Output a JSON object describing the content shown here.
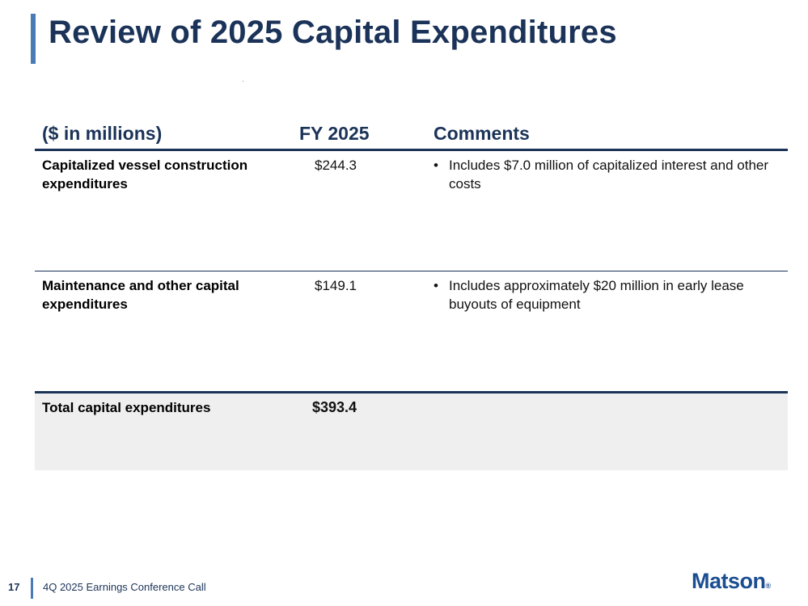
{
  "slide": {
    "title": "Review of 2025 Capital Expenditures"
  },
  "table": {
    "headers": {
      "label": "($ in millions)",
      "fy": "FY 2025",
      "comments": "Comments"
    },
    "rows": [
      {
        "label": "Capitalized vessel construction expenditures",
        "value": "$244.3",
        "comment": "Includes $7.0 million of capitalized interest and other costs"
      },
      {
        "label": "Maintenance and other capital expenditures",
        "value": "$149.1",
        "comment": "Includes approximately $20 million in early lease buyouts of equipment"
      }
    ],
    "total": {
      "label": "Total capital expenditures",
      "value": "$393.4"
    },
    "bullet_char": "•"
  },
  "footer": {
    "page_number": "17",
    "text": "4Q 2025 Earnings Conference Call",
    "logo": "Matson",
    "logo_mark": "®"
  },
  "colors": {
    "title": "#1b3358",
    "accent_bar": "#4a7bb7",
    "rule": "#1b3358",
    "total_bg": "#efefef",
    "logo": "#1b4e91"
  }
}
